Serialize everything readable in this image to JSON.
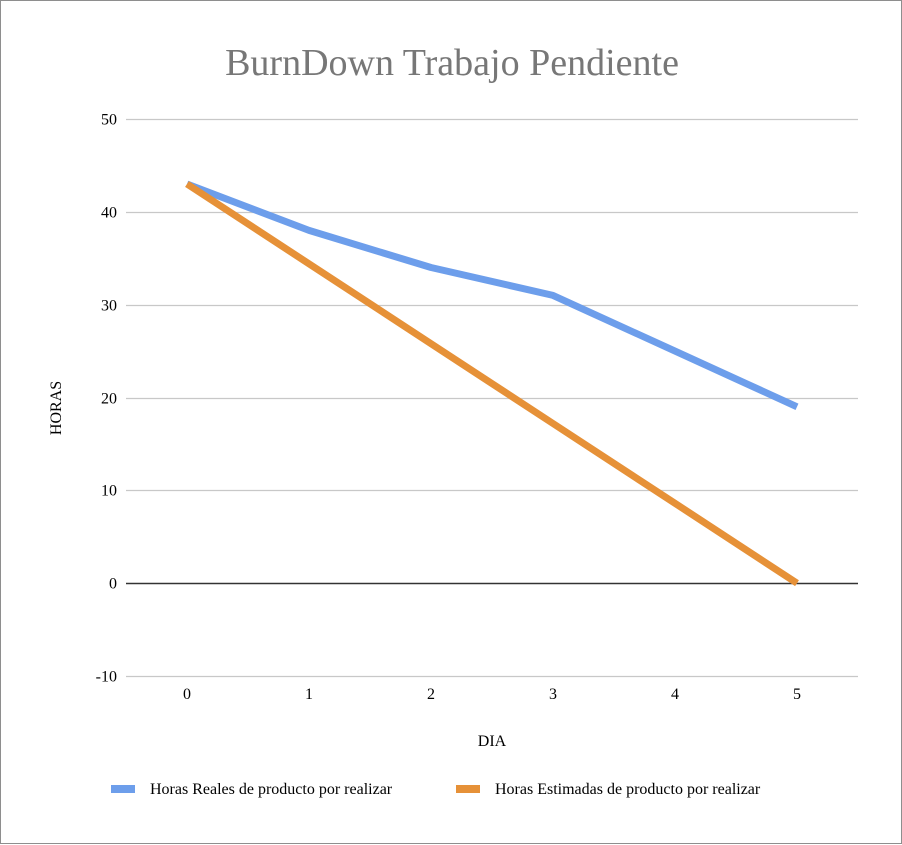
{
  "chart_data": {
    "type": "line",
    "title": "BurnDown Trabajo Pendiente",
    "xlabel": "DIA",
    "ylabel": "HORAS",
    "x": [
      0,
      1,
      2,
      3,
      4,
      5
    ],
    "x_tick_labels": [
      "0",
      "1",
      "2",
      "3",
      "4",
      "5"
    ],
    "ylim": [
      -10,
      50
    ],
    "y_ticks": [
      -10,
      0,
      10,
      20,
      30,
      40,
      50
    ],
    "y_tick_labels": [
      "-10",
      "0",
      "10",
      "20",
      "30",
      "40",
      "50"
    ],
    "grid": true,
    "legend_position": "bottom",
    "series": [
      {
        "name": "Horas Reales de producto por realizar",
        "color": "#6d9eeb",
        "values": [
          43,
          38,
          34,
          31,
          25,
          19
        ]
      },
      {
        "name": "Horas Estimadas de producto por realizar",
        "color": "#e69138",
        "values": [
          43,
          34.4,
          25.8,
          17.2,
          8.6,
          0
        ]
      }
    ]
  }
}
